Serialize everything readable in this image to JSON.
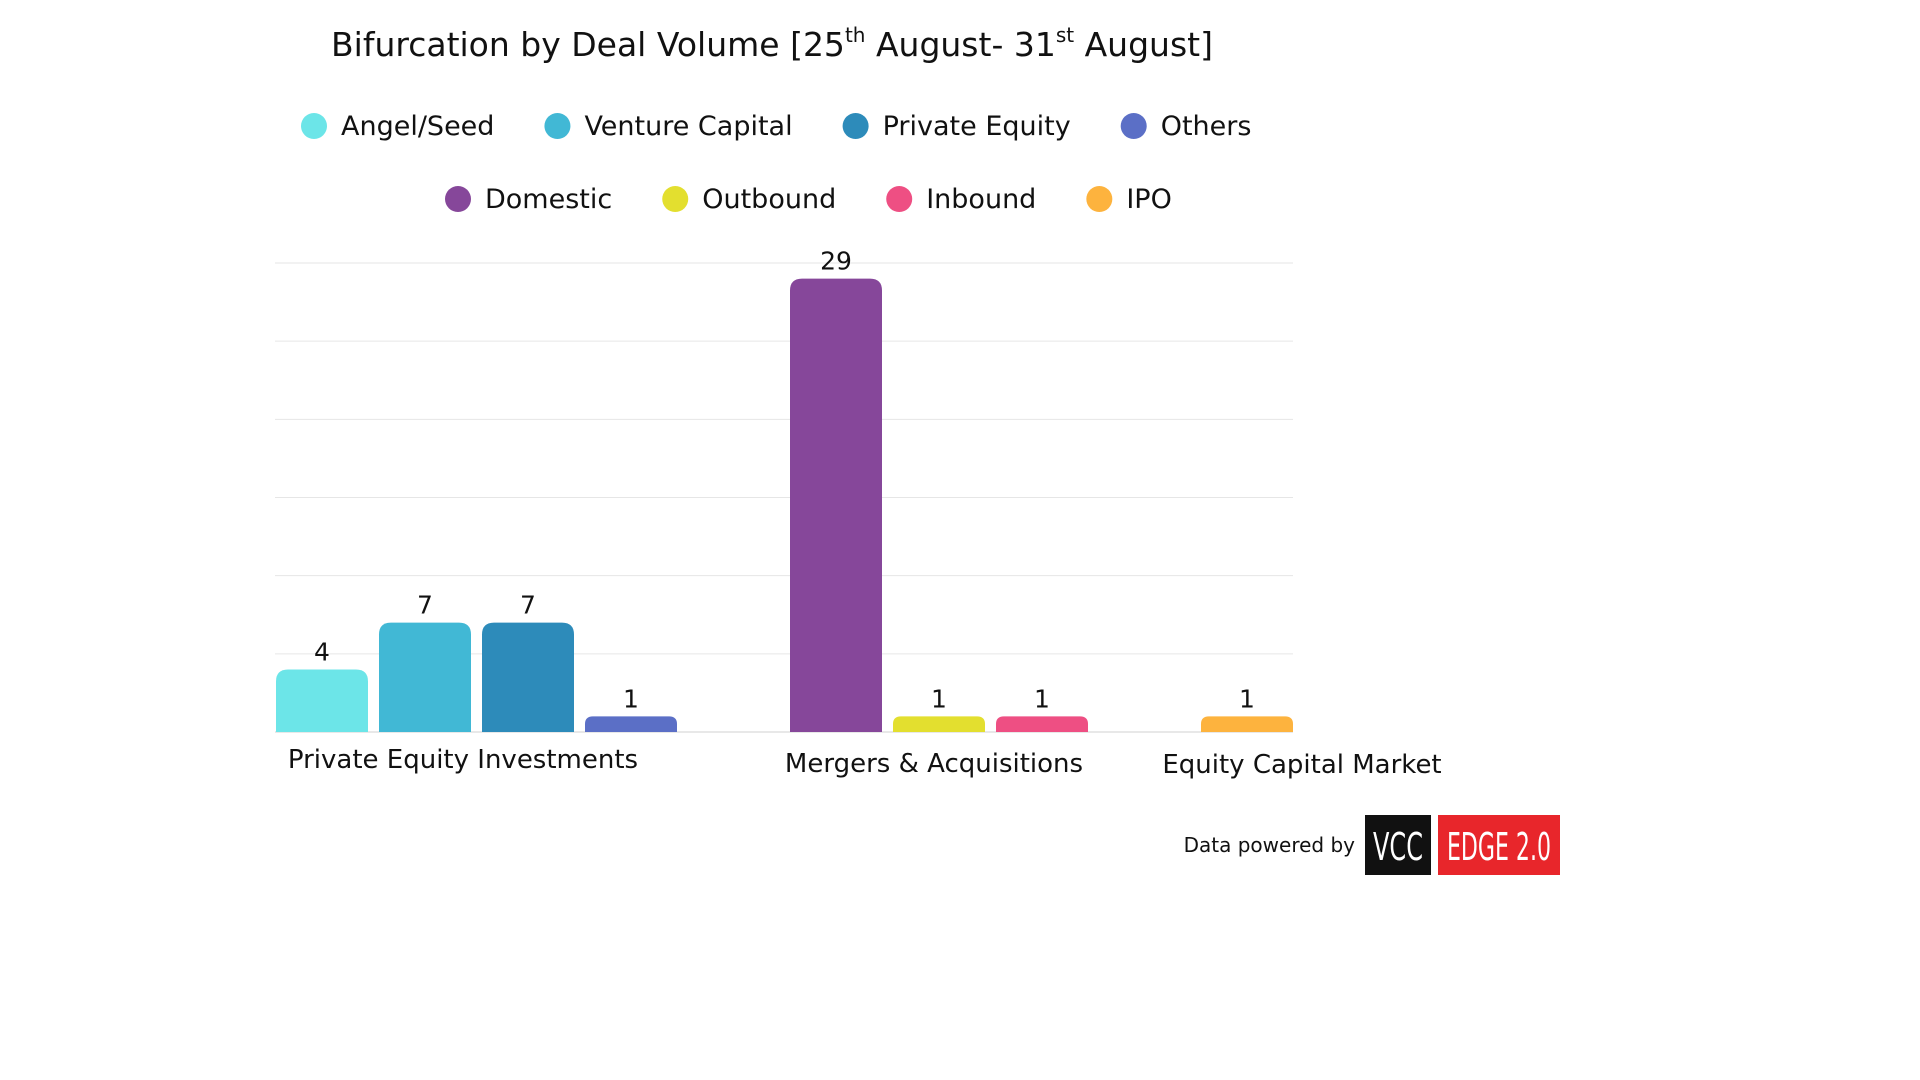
{
  "chart_data": {
    "type": "bar",
    "title": "Bifurcation by Deal Volume [25",
    "title_parts": {
      "a": "Bifurcation by Deal Volume [25",
      "sup1": "th",
      "b": " August- 31",
      "sup2": "st",
      "c": " August]"
    },
    "categories": [
      "Private Equity Investments",
      "Mergers & Acquisitions",
      "Equity Capital Market"
    ],
    "series": [
      {
        "name": "Angel/Seed",
        "color": "#6ce5e8",
        "group": "Private Equity Investments",
        "value": 4
      },
      {
        "name": "Venture Capital",
        "color": "#41b8d5",
        "group": "Private Equity Investments",
        "value": 7
      },
      {
        "name": "Private Equity",
        "color": "#2d8bba",
        "group": "Private Equity Investments",
        "value": 7
      },
      {
        "name": "Others",
        "color": "#5b6fc6",
        "group": "Private Equity Investments",
        "value": 1
      },
      {
        "name": "Domestic",
        "color": "#86479a",
        "group": "Mergers & Acquisitions",
        "value": 29
      },
      {
        "name": "Outbound",
        "color": "#e3df2f",
        "group": "Mergers & Acquisitions",
        "value": 1
      },
      {
        "name": "Inbound",
        "color": "#ee4f83",
        "group": "Mergers & Acquisitions",
        "value": 1
      },
      {
        "name": "IPO",
        "color": "#fdb33e",
        "group": "Equity Capital Market",
        "value": 1
      }
    ],
    "ylim": [
      0,
      30
    ],
    "grid": true,
    "legend_placement": "top"
  },
  "footer": {
    "powered_label": "Data powered by",
    "logo_left": "VCC",
    "logo_right": "EDGE 2.0",
    "logo_left_color": "#111111",
    "logo_right_color": "#e8262b"
  }
}
